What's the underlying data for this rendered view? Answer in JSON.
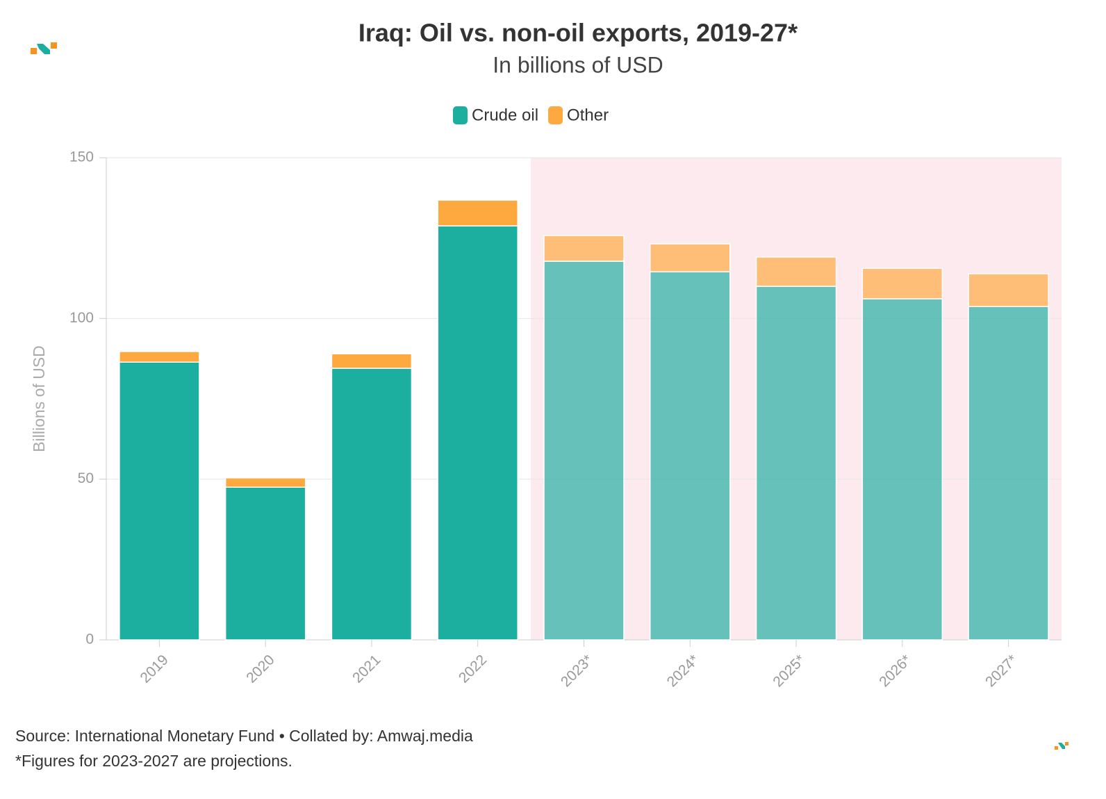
{
  "chart_data": {
    "type": "stacked_bar",
    "title": "Iraq: Oil vs. non-oil exports, 2019-27*",
    "subtitle": "In billions of USD",
    "y_label": "Billions of USD",
    "categories": [
      "2019",
      "2020",
      "2021",
      "2022",
      "2023*",
      "2024*",
      "2025*",
      "2026*",
      "2027*"
    ],
    "series": [
      {
        "name": "Crude oil",
        "color": "#1cae9f",
        "values": [
          86.4,
          47.5,
          84.5,
          128.8,
          117.8,
          114.5,
          110.0,
          106.1,
          103.7
        ]
      },
      {
        "name": "Other",
        "color": "#fea940",
        "values": [
          3.3,
          2.9,
          4.5,
          8.0,
          8.0,
          8.7,
          9.1,
          9.5,
          10.2
        ]
      }
    ],
    "projection_start": "2023*",
    "ylim": [
      0,
      150
    ],
    "yticks": [
      0,
      50,
      100,
      150
    ],
    "grid": true,
    "source": "Source: International Monetary Fund • Collated by: Amwaj.media",
    "note": "*Figures for 2023-2027 are projections."
  }
}
